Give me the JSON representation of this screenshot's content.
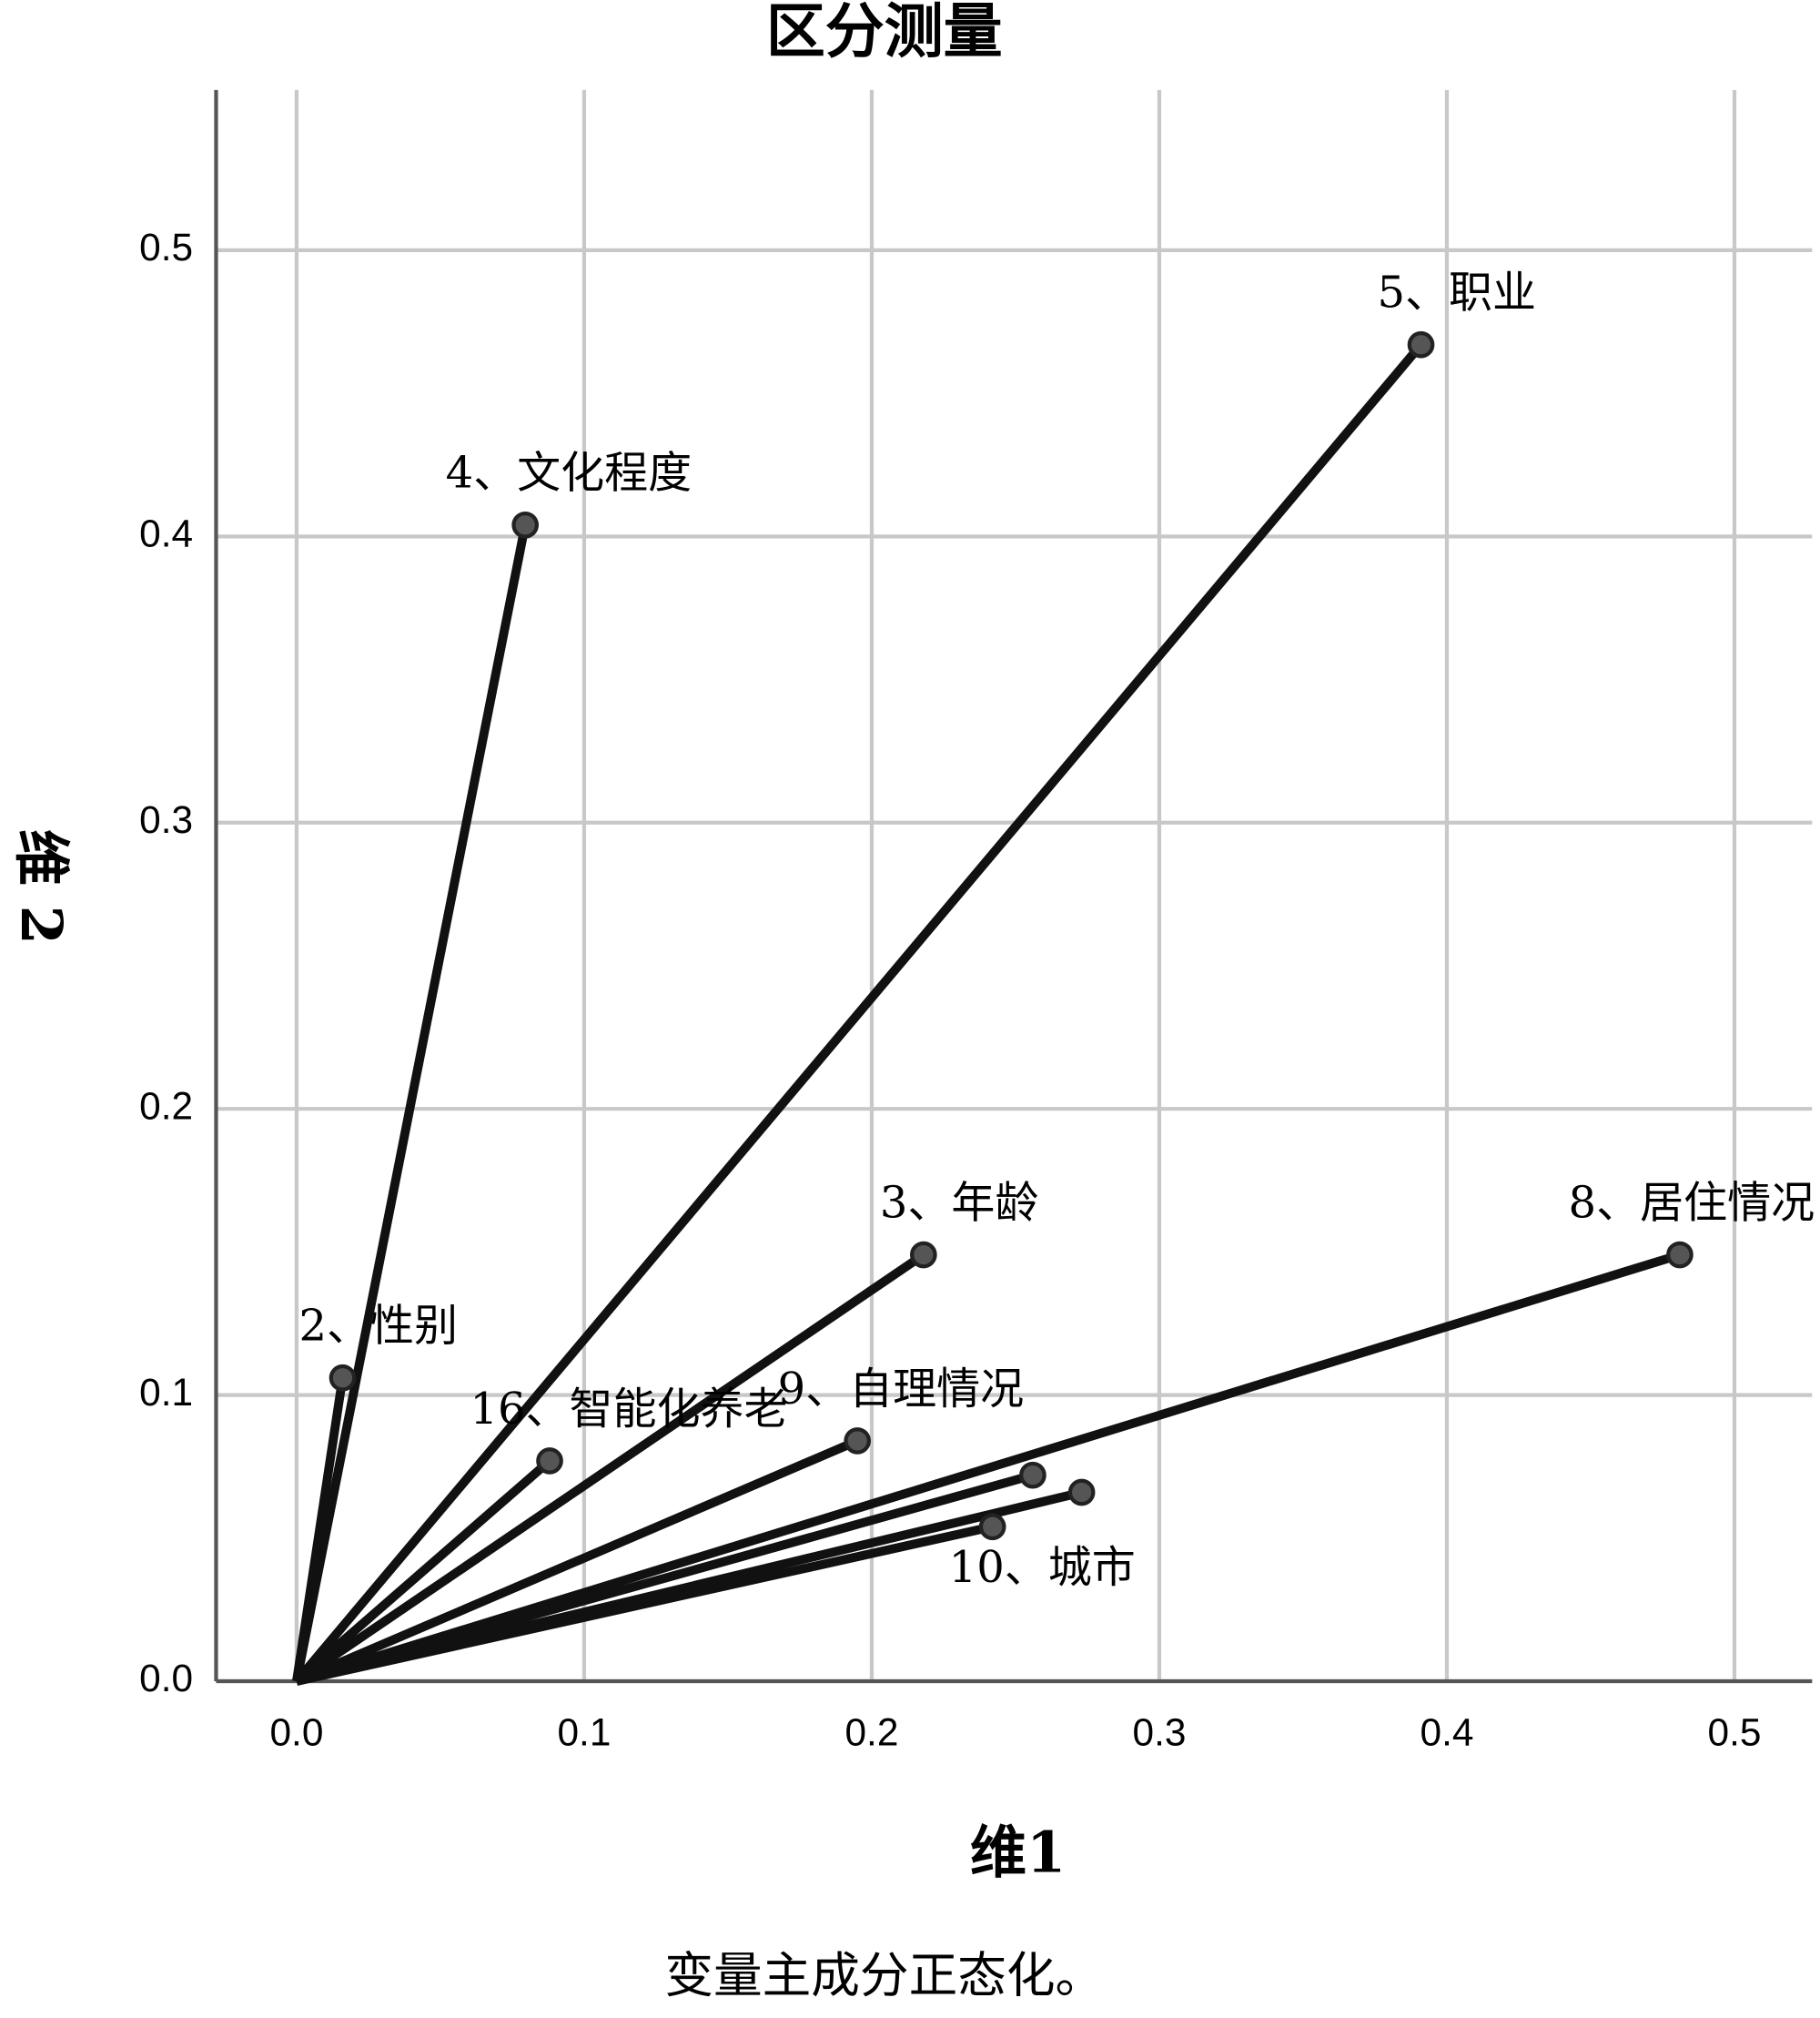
{
  "chart_data": {
    "type": "scatter",
    "title": "区分测量",
    "x_label": "维1",
    "y_label": "维 2",
    "note": "变量主成分正态化。",
    "labels": [
      "4、文化程度",
      "5、职业",
      "3、年龄",
      "8、居住情况",
      "2、性别",
      "16、智能化养老",
      "9、自理情况",
      null,
      null,
      "10、城市"
    ],
    "x": [
      0.0795,
      0.391,
      0.218,
      0.481,
      0.016,
      0.088,
      0.195,
      0.256,
      0.273,
      0.242
    ],
    "values": [
      0.404,
      0.467,
      0.149,
      0.149,
      0.106,
      0.077,
      0.084,
      0.072,
      0.066,
      0.054
    ],
    "lines_from_origin": true,
    "color": "#111111",
    "marker_color": "#555555",
    "xlim": [
      -0.028,
      0.527
    ],
    "ylim": [
      0,
      0.556
    ],
    "xticks": [
      {
        "value": 0,
        "label": "0.0"
      },
      0.1,
      0.2,
      0.3,
      0.4,
      0.5
    ],
    "yticks": [
      {
        "value": 0,
        "label": "0.0"
      },
      0.1,
      0.2,
      0.3,
      0.4,
      0.5
    ],
    "grid": true
  }
}
